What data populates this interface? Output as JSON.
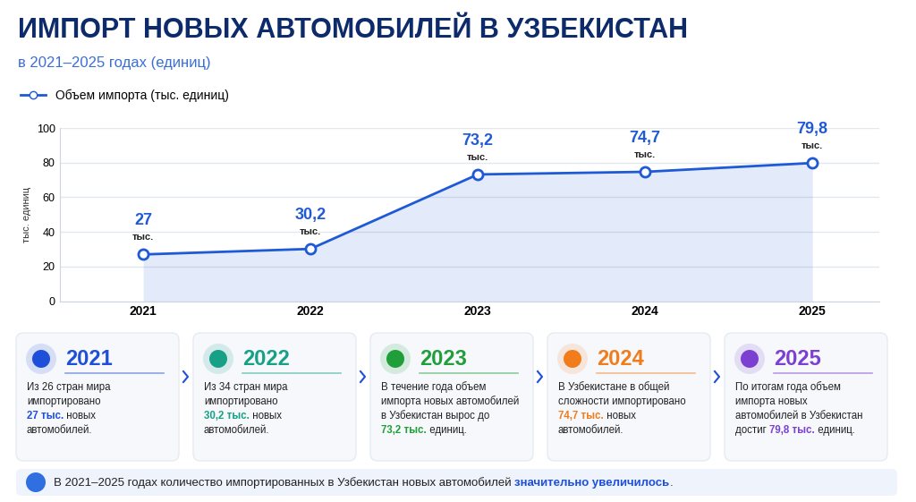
{
  "chart_data": {
    "type": "line",
    "title": "ИМПОРТ НОВЫХ АВТОМОБИЛЕЙ В УЗБЕКИСТАН",
    "subtitle": "в 2021–2025 годах (единиц)",
    "y_label": "тыс. единиц",
    "categories": [
      "2021",
      "2022",
      "2023",
      "2024",
      "2025"
    ],
    "series": [
      {
        "name": "Объем импорта (тыс. единиц)",
        "color": "#1f5ad6",
        "marker": "o",
        "values": [
          27,
          30.2,
          73.2,
          74.7,
          79.8
        ],
        "value_labels": [
          "27\nтыс.",
          "30,2\nтыс.",
          "73,2\nтыс.",
          "74,7\nтыс.",
          "79,8\nтыс."
        ]
      }
    ],
    "ylim": [
      0,
      100
    ],
    "yticks": [
      0,
      20,
      40,
      60,
      80,
      100
    ],
    "grid": true,
    "legend": "upper left",
    "data_labels": true
  },
  "cards": [
    {
      "year": "2021",
      "color": "#1e4fd8",
      "highlight": "27 тыс.",
      "lines": [
        "Из 26 стран мира",
        "импортировано",
        "27 тыс. новых",
        "автомобилей."
      ]
    },
    {
      "year": "2022",
      "color": "#16a085",
      "highlight": "30,2 тыс.",
      "lines": [
        "Из 34 стран мира",
        "импортировано",
        "30,2 тыс. новых",
        "автомобилей."
      ]
    },
    {
      "year": "2023",
      "color": "#1f9e3a",
      "highlight": "73,2 тыс.",
      "lines": [
        "В течение года объем",
        "импорта новых автомобилей",
        "в Узбекистан вырос до",
        "73,2 тыс. единиц."
      ]
    },
    {
      "year": "2024",
      "color": "#f07c1b",
      "highlight": "74,7 тыс.",
      "lines": [
        "В Узбекистане в общей",
        "сложности импортировано",
        "74,7 тыс. новых",
        "автомобилей."
      ]
    },
    {
      "year": "2025",
      "color": "#7b3fd1",
      "highlight": "79,8 тыс.",
      "lines": [
        "По итогам года объем",
        "импорта новых",
        "автомобилей в Узбекистан",
        "достиг 79,8 тыс. единиц."
      ]
    }
  ],
  "footer": {
    "text": "В 2021–2025 годах количество импортированных в Узбекистан новых автомобилей значительно увеличилось.",
    "highlight": "значительно увеличилось",
    "color": "#1e4fd8"
  }
}
